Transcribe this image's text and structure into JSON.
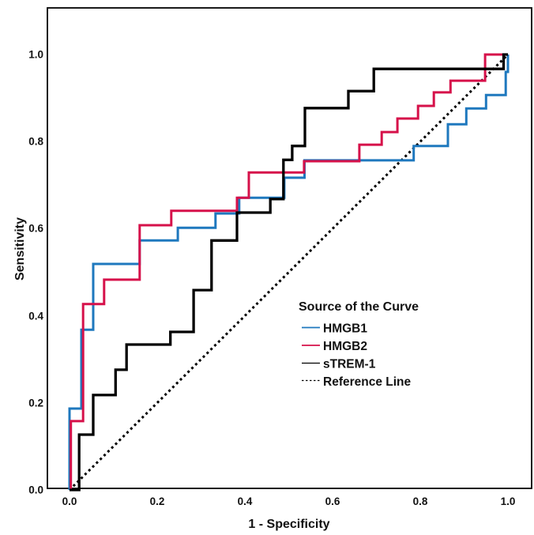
{
  "chart_data": {
    "type": "line",
    "subtype": "roc-step-curves",
    "title": "",
    "xlabel": "1 - Specificity",
    "ylabel": "Sensitivity",
    "xlim": [
      0.0,
      1.0
    ],
    "ylim": [
      0.0,
      1.0
    ],
    "grid": false,
    "x_ticks": [
      0.0,
      0.2,
      0.4,
      0.6,
      0.8,
      1.0
    ],
    "y_ticks": [
      0.0,
      0.2,
      0.4,
      0.6,
      0.8,
      1.0
    ],
    "x_tick_labels": [
      "0.0",
      "0.2",
      "0.4",
      "0.6",
      "0.8",
      "1.0"
    ],
    "y_tick_labels": [
      "0.0",
      "0.2",
      "0.4",
      "0.6",
      "0.8",
      "1.0"
    ],
    "legend": {
      "title": "Source of the Curve",
      "position": "inside-right",
      "items": [
        {
          "label": "HMGB1",
          "series_index": 0
        },
        {
          "label": "HMGB2",
          "series_index": 1
        },
        {
          "label": "sTREM-1",
          "series_index": 2
        },
        {
          "label": "Reference Line",
          "series_index": 3
        }
      ]
    },
    "series": [
      {
        "name": "HMGB1",
        "color": "#1E78BE",
        "style": "solid",
        "points": [
          [
            0,
            0
          ],
          [
            0,
            0.187
          ],
          [
            0.027,
            0.187
          ],
          [
            0.027,
            0.368
          ],
          [
            0.054,
            0.368
          ],
          [
            0.054,
            0.519
          ],
          [
            0.16,
            0.519
          ],
          [
            0.16,
            0.573
          ],
          [
            0.247,
            0.573
          ],
          [
            0.247,
            0.602
          ],
          [
            0.333,
            0.602
          ],
          [
            0.333,
            0.635
          ],
          [
            0.387,
            0.635
          ],
          [
            0.387,
            0.671
          ],
          [
            0.49,
            0.671
          ],
          [
            0.49,
            0.717
          ],
          [
            0.536,
            0.717
          ],
          [
            0.536,
            0.757
          ],
          [
            0.785,
            0.757
          ],
          [
            0.785,
            0.79
          ],
          [
            0.863,
            0.79
          ],
          [
            0.863,
            0.84
          ],
          [
            0.905,
            0.84
          ],
          [
            0.905,
            0.876
          ],
          [
            0.95,
            0.876
          ],
          [
            0.95,
            0.907
          ],
          [
            0.995,
            0.907
          ],
          [
            0.995,
            0.96
          ],
          [
            1,
            0.96
          ],
          [
            1,
            1
          ]
        ]
      },
      {
        "name": "HMGB2",
        "color": "#D6114A",
        "style": "solid",
        "points": [
          [
            0,
            0
          ],
          [
            0.003,
            0
          ],
          [
            0.003,
            0.158
          ],
          [
            0.031,
            0.158
          ],
          [
            0.031,
            0.427
          ],
          [
            0.079,
            0.427
          ],
          [
            0.079,
            0.483
          ],
          [
            0.16,
            0.483
          ],
          [
            0.16,
            0.608
          ],
          [
            0.232,
            0.608
          ],
          [
            0.232,
            0.641
          ],
          [
            0.382,
            0.641
          ],
          [
            0.382,
            0.671
          ],
          [
            0.409,
            0.671
          ],
          [
            0.409,
            0.729
          ],
          [
            0.535,
            0.729
          ],
          [
            0.535,
            0.755
          ],
          [
            0.661,
            0.755
          ],
          [
            0.661,
            0.793
          ],
          [
            0.712,
            0.793
          ],
          [
            0.712,
            0.822
          ],
          [
            0.748,
            0.822
          ],
          [
            0.748,
            0.853
          ],
          [
            0.795,
            0.853
          ],
          [
            0.795,
            0.882
          ],
          [
            0.831,
            0.882
          ],
          [
            0.831,
            0.913
          ],
          [
            0.869,
            0.913
          ],
          [
            0.869,
            0.94
          ],
          [
            0.948,
            0.94
          ],
          [
            0.948,
            1
          ],
          [
            1,
            1
          ]
        ]
      },
      {
        "name": "sTREM-1",
        "color": "#000000",
        "style": "solid",
        "points": [
          [
            0,
            0
          ],
          [
            0.022,
            0
          ],
          [
            0.022,
            0.127
          ],
          [
            0.054,
            0.127
          ],
          [
            0.054,
            0.218
          ],
          [
            0.105,
            0.218
          ],
          [
            0.105,
            0.276
          ],
          [
            0.13,
            0.276
          ],
          [
            0.13,
            0.334
          ],
          [
            0.23,
            0.334
          ],
          [
            0.23,
            0.363
          ],
          [
            0.283,
            0.363
          ],
          [
            0.283,
            0.459
          ],
          [
            0.324,
            0.459
          ],
          [
            0.324,
            0.573
          ],
          [
            0.382,
            0.573
          ],
          [
            0.382,
            0.637
          ],
          [
            0.458,
            0.637
          ],
          [
            0.458,
            0.668
          ],
          [
            0.488,
            0.668
          ],
          [
            0.488,
            0.758
          ],
          [
            0.508,
            0.758
          ],
          [
            0.508,
            0.79
          ],
          [
            0.537,
            0.79
          ],
          [
            0.537,
            0.877
          ],
          [
            0.636,
            0.877
          ],
          [
            0.636,
            0.916
          ],
          [
            0.694,
            0.916
          ],
          [
            0.694,
            0.967
          ],
          [
            0.99,
            0.967
          ],
          [
            0.99,
            1
          ],
          [
            1,
            1
          ]
        ]
      },
      {
        "name": "Reference Line",
        "color": "#000000",
        "style": "dotted",
        "points": [
          [
            0,
            0
          ],
          [
            1,
            1
          ]
        ]
      }
    ]
  }
}
